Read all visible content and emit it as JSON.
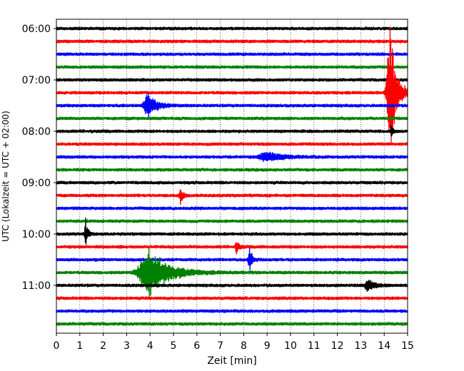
{
  "chart_data": {
    "type": "line",
    "title": "",
    "xlabel": "Zeit  [min]",
    "ylabel": "UTC (Lokalzeit = UTC + 02:00)",
    "xlim": [
      0,
      15
    ],
    "x_ticks": [
      "0",
      "1",
      "2",
      "3",
      "4",
      "5",
      "6",
      "7",
      "8",
      "9",
      "10",
      "11",
      "12",
      "13",
      "14",
      "15"
    ],
    "y_ticks": [
      "06:00",
      "07:00",
      "08:00",
      "09:00",
      "10:00",
      "11:00"
    ],
    "grid": "vertical dotted at each minute",
    "trace_interval_min": 15,
    "start_time_utc": "06:00",
    "color_cycle": [
      "#000000",
      "#ff0000",
      "#0000ff",
      "#008000"
    ],
    "traces": [
      {
        "start": "06:00",
        "color": "#000000",
        "events": []
      },
      {
        "start": "06:15",
        "color": "#ff0000",
        "events": []
      },
      {
        "start": "06:30",
        "color": "#0000ff",
        "events": []
      },
      {
        "start": "06:45",
        "color": "#008000",
        "events": []
      },
      {
        "start": "07:00",
        "color": "#000000",
        "events": []
      },
      {
        "start": "07:15",
        "color": "#ff0000",
        "events": [
          {
            "t": 14.25,
            "amp": 6.5,
            "dur": 0.5
          }
        ]
      },
      {
        "start": "07:30",
        "color": "#0000ff",
        "events": [
          {
            "t": 3.9,
            "amp": 1.3,
            "dur": 0.6
          }
        ]
      },
      {
        "start": "07:45",
        "color": "#008000",
        "events": []
      },
      {
        "start": "08:00",
        "color": "#000000",
        "events": [
          {
            "t": 14.3,
            "amp": 1.0,
            "dur": 0.1
          }
        ]
      },
      {
        "start": "08:15",
        "color": "#ff0000",
        "events": []
      },
      {
        "start": "08:30",
        "color": "#0000ff",
        "events": [
          {
            "t": 9.0,
            "amp": 0.5,
            "dur": 1.2
          }
        ]
      },
      {
        "start": "08:45",
        "color": "#008000",
        "events": []
      },
      {
        "start": "09:00",
        "color": "#000000",
        "events": []
      },
      {
        "start": "09:15",
        "color": "#ff0000",
        "events": [
          {
            "t": 5.3,
            "amp": 0.7,
            "dur": 0.2
          }
        ]
      },
      {
        "start": "09:30",
        "color": "#0000ff",
        "events": []
      },
      {
        "start": "09:45",
        "color": "#008000",
        "events": []
      },
      {
        "start": "10:00",
        "color": "#000000",
        "events": [
          {
            "t": 1.25,
            "amp": 1.6,
            "dur": 0.15
          }
        ]
      },
      {
        "start": "10:15",
        "color": "#ff0000",
        "events": [
          {
            "t": 7.7,
            "amp": 0.6,
            "dur": 0.2
          }
        ]
      },
      {
        "start": "10:30",
        "color": "#0000ff",
        "events": [
          {
            "t": 8.25,
            "amp": 1.2,
            "dur": 0.2
          }
        ]
      },
      {
        "start": "10:45",
        "color": "#008000",
        "events": [
          {
            "t": 3.95,
            "amp": 2.2,
            "dur": 1.6
          }
        ]
      },
      {
        "start": "11:00",
        "color": "#000000",
        "events": [
          {
            "t": 13.3,
            "amp": 0.6,
            "dur": 0.5
          }
        ]
      },
      {
        "start": "11:15",
        "color": "#ff0000",
        "events": []
      },
      {
        "start": "11:30",
        "color": "#0000ff",
        "events": []
      },
      {
        "start": "11:45",
        "color": "#008000",
        "events": []
      }
    ]
  }
}
